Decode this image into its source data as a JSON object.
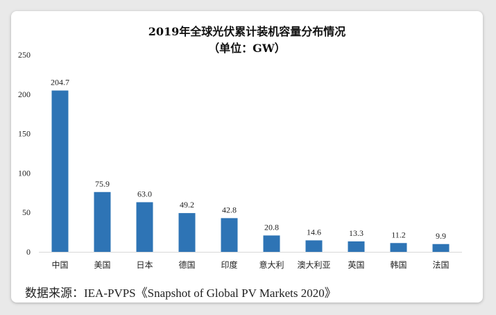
{
  "chart_data": {
    "type": "bar",
    "title": "2019年全球光伏累计装机容量分布情况",
    "subtitle": "（单位：GW）",
    "xlabel": "",
    "ylabel": "",
    "categories": [
      "中国",
      "美国",
      "日本",
      "德国",
      "印度",
      "意大利",
      "澳大利亚",
      "英国",
      "韩国",
      "法国"
    ],
    "values": [
      204.7,
      75.9,
      63.0,
      49.2,
      42.8,
      20.8,
      14.6,
      13.3,
      11.2,
      9.9
    ],
    "value_labels": [
      "204.7",
      "75.9",
      "63.0",
      "49.2",
      "42.8",
      "20.8",
      "14.6",
      "13.3",
      "11.2",
      "9.9"
    ],
    "ylim": [
      0,
      250
    ],
    "yticks": [
      "0",
      "50",
      "100",
      "150",
      "200",
      "250"
    ],
    "grid": false,
    "legend": "none"
  },
  "colors": {
    "bar": "#2e74b5",
    "axis": "#d9d9d9",
    "text": "#222222"
  },
  "footer": {
    "source": "数据来源：IEA-PVPS《Snapshot of Global PV Markets 2020》"
  }
}
